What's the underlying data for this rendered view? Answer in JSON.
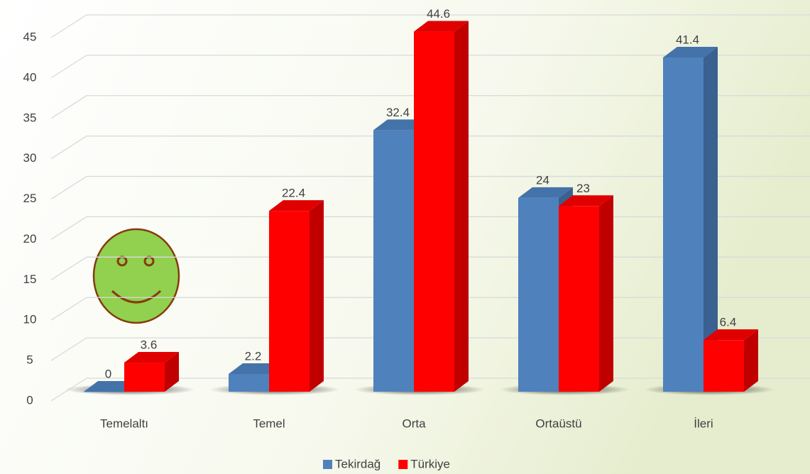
{
  "chart_data": {
    "type": "bar3d",
    "categories": [
      "Temelaltı",
      "Temel",
      "Orta",
      "Ortaüstü",
      "İleri"
    ],
    "series": [
      {
        "name": "Tekirdağ",
        "color": "#4f81bd",
        "values": [
          0,
          2.2,
          32.4,
          24,
          41.4
        ]
      },
      {
        "name": "Türkiye",
        "color": "#ff0000",
        "values": [
          3.6,
          22.4,
          44.6,
          23,
          6.4
        ]
      }
    ],
    "ylim": [
      0,
      45
    ],
    "yticks": [
      0,
      5,
      10,
      15,
      20,
      25,
      30,
      35,
      40,
      45
    ],
    "grid": true,
    "legend": "bottom"
  }
}
